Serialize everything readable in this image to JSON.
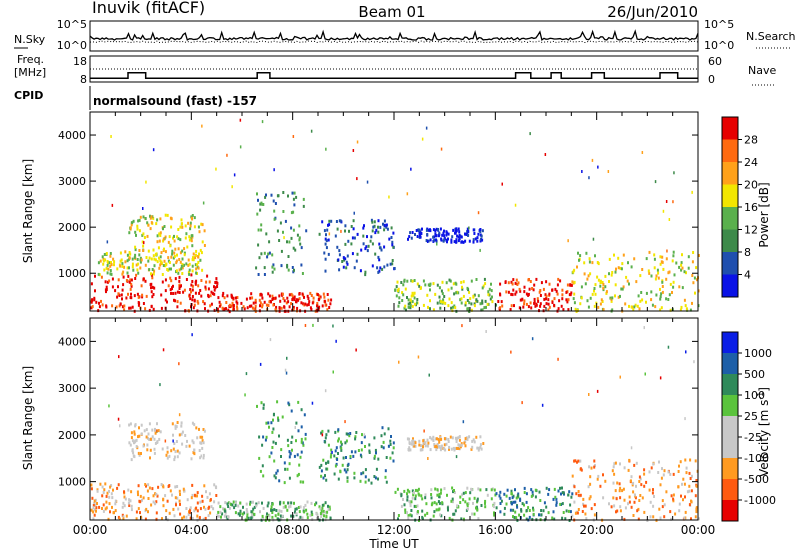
{
  "header": {
    "station": "Inuvik (fitACF)",
    "beam": "Beam 01",
    "date": "26/Jun/2010"
  },
  "sky_panel": {
    "left_label": "N.Sky",
    "right_label": "N.Search",
    "left_ticks": [
      "10^5",
      "10^0"
    ],
    "right_ticks": [
      "10^5",
      "10^0"
    ]
  },
  "freq_panel": {
    "left_label_1": "Freq.",
    "left_label_2": "[MHz]",
    "right_label": "Nave",
    "left_ticks": [
      "18",
      "8"
    ],
    "right_ticks": [
      "60",
      "0"
    ]
  },
  "cpid": {
    "label": "CPID",
    "text": "normalsound (fast) -157"
  },
  "colors": {
    "power": [
      "#0a12e6",
      "#1f4fae",
      "#3d8a4a",
      "#5ab04d",
      "#f2e600",
      "#ffa11a",
      "#ff6a10",
      "#e60000"
    ],
    "velocity": [
      "#e60000",
      "#ff5a10",
      "#ff9a20",
      "#c8c8c8",
      "#c8c8c8",
      "#5ac33c",
      "#2f8a5a",
      "#1d5fa8",
      "#0a1ee6"
    ]
  },
  "chart_data": [
    {
      "type": "heatmap",
      "name": "power",
      "ylabel": "Slant Range [km]",
      "xlim": [
        "00:00",
        "24:00"
      ],
      "ylim": [
        180,
        4500
      ],
      "x_ticks": [
        "00:00",
        "04:00",
        "08:00",
        "12:00",
        "16:00",
        "20:00",
        "00:00"
      ],
      "y_ticks": [
        1000,
        2000,
        3000,
        4000
      ],
      "colorbar_label": "Power [dB]",
      "colorbar_ticks": [
        "4",
        "8",
        "12",
        "16",
        "20",
        "24",
        "28"
      ],
      "bands": [
        {
          "t0": 0.0,
          "t1": 5.0,
          "r0": 200,
          "r1": 1000,
          "level": 7
        },
        {
          "t0": 0.3,
          "t1": 4.5,
          "r0": 1000,
          "r1": 1500,
          "level": 4
        },
        {
          "t0": 1.5,
          "t1": 4.5,
          "r0": 1500,
          "r1": 2300,
          "level": 4
        },
        {
          "t0": 5.0,
          "t1": 9.5,
          "r0": 200,
          "r1": 600,
          "level": 7
        },
        {
          "t0": 6.5,
          "t1": 8.5,
          "r0": 1000,
          "r1": 2800,
          "level": 2
        },
        {
          "t0": 9.0,
          "t1": 12.0,
          "r0": 1000,
          "r1": 2200,
          "level": 1
        },
        {
          "t0": 12.5,
          "t1": 15.5,
          "r0": 1700,
          "r1": 2000,
          "level": 0
        },
        {
          "t0": 12.0,
          "t1": 16.0,
          "r0": 200,
          "r1": 900,
          "level": 3
        },
        {
          "t0": 16.0,
          "t1": 19.0,
          "r0": 200,
          "r1": 900,
          "level": 7
        },
        {
          "t0": 19.0,
          "t1": 24.0,
          "r0": 200,
          "r1": 1500,
          "level": 4
        }
      ]
    },
    {
      "type": "heatmap",
      "name": "velocity",
      "ylabel": "Slant Range [km]",
      "xlabel": "Time UT",
      "xlim": [
        "00:00",
        "24:00"
      ],
      "ylim": [
        180,
        4500
      ],
      "x_ticks": [
        "00:00",
        "04:00",
        "08:00",
        "12:00",
        "16:00",
        "20:00",
        "00:00"
      ],
      "y_ticks": [
        1000,
        2000,
        3000,
        4000
      ],
      "colorbar_label": "Velocity [m s^-1]",
      "colorbar_ticks": [
        "-1000",
        "-500",
        "-100",
        "-25",
        "25",
        "100",
        "500",
        "1000"
      ],
      "bands": [
        {
          "t0": 0.0,
          "t1": 5.0,
          "r0": 200,
          "r1": 1000,
          "level": 2
        },
        {
          "t0": 1.5,
          "t1": 4.5,
          "r0": 1500,
          "r1": 2300,
          "level": 3
        },
        {
          "t0": 5.0,
          "t1": 9.5,
          "r0": 200,
          "r1": 600,
          "level": 5
        },
        {
          "t0": 6.5,
          "t1": 8.5,
          "r0": 1000,
          "r1": 2800,
          "level": 6
        },
        {
          "t0": 9.0,
          "t1": 12.0,
          "r0": 1000,
          "r1": 2200,
          "level": 6
        },
        {
          "t0": 12.5,
          "t1": 15.5,
          "r0": 1700,
          "r1": 2000,
          "level": 3
        },
        {
          "t0": 12.0,
          "t1": 16.0,
          "r0": 200,
          "r1": 900,
          "level": 5
        },
        {
          "t0": 16.0,
          "t1": 19.0,
          "r0": 200,
          "r1": 900,
          "level": 6
        },
        {
          "t0": 19.0,
          "t1": 24.0,
          "r0": 200,
          "r1": 1500,
          "level": 2
        }
      ]
    }
  ]
}
